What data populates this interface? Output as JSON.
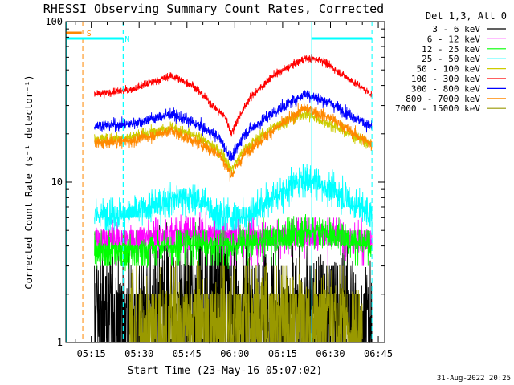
{
  "chart_data": {
    "type": "line",
    "title": "RHESSI Observing Summary Count Rates, Corrected",
    "xlabel": "Start Time (23-May-16 05:07:02)",
    "ylabel": "Corrected Count Rate (s⁻¹ detector⁻¹)",
    "y_scale": "log",
    "ylim": [
      1,
      100
    ],
    "xlim": [
      "05:07:02",
      "06:47:00"
    ],
    "grid": false,
    "legend_placement": "right",
    "legend_title": "Det 1,3, Att 0",
    "y_ticks": [
      {
        "value": 1,
        "label": "1"
      },
      {
        "value": 10,
        "label": "10"
      },
      {
        "value": 100,
        "label": "100"
      }
    ],
    "x_ticks": [
      {
        "t": "05:15",
        "label": "05:15"
      },
      {
        "t": "05:30",
        "label": "05:30"
      },
      {
        "t": "05:45",
        "label": "05:45"
      },
      {
        "t": "06:00",
        "label": "06:00"
      },
      {
        "t": "06:15",
        "label": "06:15"
      },
      {
        "t": "06:30",
        "label": "06:30"
      },
      {
        "t": "06:45",
        "label": "06:45"
      }
    ],
    "data_start": "05:16:00",
    "data_end": "06:43:30",
    "series": [
      {
        "name": "3 - 6 keV",
        "color": "#000000",
        "min": 1,
        "max": 8,
        "points": [
          [
            "05:16",
            2.0
          ],
          [
            "05:20",
            1.8
          ],
          [
            "05:30",
            1.7
          ],
          [
            "05:45",
            2.4
          ],
          [
            "05:57",
            2.6
          ],
          [
            "06:05",
            2.0
          ],
          [
            "06:20",
            1.8
          ],
          [
            "06:30",
            1.9
          ],
          [
            "06:43",
            1.5
          ]
        ]
      },
      {
        "name": "6 - 12 keV",
        "color": "#ff00ff",
        "min": 2.5,
        "max": 7,
        "points": [
          [
            "05:16",
            4.3
          ],
          [
            "05:30",
            4.4
          ],
          [
            "05:45",
            4.8
          ],
          [
            "05:58",
            4.5
          ],
          [
            "06:10",
            4.4
          ],
          [
            "06:25",
            4.8
          ],
          [
            "06:43",
            4.3
          ]
        ]
      },
      {
        "name": "12 - 25 keV",
        "color": "#00ff00",
        "min": 2,
        "max": 7,
        "points": [
          [
            "05:16",
            3.6
          ],
          [
            "05:30",
            3.7
          ],
          [
            "05:45",
            4.2
          ],
          [
            "05:58",
            4.0
          ],
          [
            "06:10",
            4.3
          ],
          [
            "06:25",
            5.0
          ],
          [
            "06:43",
            4.0
          ]
        ]
      },
      {
        "name": "25 - 50 keV",
        "color": "#00ffff",
        "min": 5,
        "max": 13,
        "points": [
          [
            "05:16",
            6.2
          ],
          [
            "05:30",
            6.5
          ],
          [
            "05:40",
            7.8
          ],
          [
            "05:48",
            8.0
          ],
          [
            "05:56",
            6.0
          ],
          [
            "06:03",
            6.0
          ],
          [
            "06:12",
            8.0
          ],
          [
            "06:22",
            10.5
          ],
          [
            "06:30",
            9.0
          ],
          [
            "06:43",
            6.2
          ]
        ]
      },
      {
        "name": "50 - 100 keV",
        "color": "#cccc00",
        "min": 9,
        "max": 40,
        "points": [
          [
            "05:16",
            18.5
          ],
          [
            "05:27",
            19.0
          ],
          [
            "05:40",
            22.0
          ],
          [
            "05:50",
            18.5
          ],
          [
            "05:56",
            15.0
          ],
          [
            "05:59",
            12.0
          ],
          [
            "06:03",
            16.0
          ],
          [
            "06:12",
            22.0
          ],
          [
            "06:22",
            27.0
          ],
          [
            "06:32",
            22.0
          ],
          [
            "06:43",
            17.0
          ]
        ]
      },
      {
        "name": "100 - 300 keV",
        "color": "#ff0000",
        "min": 14,
        "max": 70,
        "points": [
          [
            "05:16",
            35.0
          ],
          [
            "05:27",
            37.5
          ],
          [
            "05:40",
            46.0
          ],
          [
            "05:47",
            40.0
          ],
          [
            "05:53",
            30.0
          ],
          [
            "05:57",
            25.5
          ],
          [
            "05:59",
            20.0
          ],
          [
            "06:01",
            25.0
          ],
          [
            "06:05",
            34.0
          ],
          [
            "06:12",
            46.0
          ],
          [
            "06:22",
            59.0
          ],
          [
            "06:27",
            58.0
          ],
          [
            "06:35",
            45.0
          ],
          [
            "06:43",
            35.0
          ]
        ]
      },
      {
        "name": "300 - 800 keV",
        "color": "#0000ff",
        "min": 10,
        "max": 45,
        "points": [
          [
            "05:16",
            22.5
          ],
          [
            "05:27",
            23.0
          ],
          [
            "05:40",
            26.5
          ],
          [
            "05:48",
            23.0
          ],
          [
            "05:55",
            19.0
          ],
          [
            "05:59",
            14.0
          ],
          [
            "06:03",
            20.0
          ],
          [
            "06:12",
            27.0
          ],
          [
            "06:22",
            35.5
          ],
          [
            "06:30",
            31.0
          ],
          [
            "06:43",
            22.0
          ]
        ]
      },
      {
        "name": "800 - 7000 keV",
        "color": "#ff8800",
        "min": 9,
        "max": 38,
        "points": [
          [
            "05:16",
            17.5
          ],
          [
            "05:27",
            18.0
          ],
          [
            "05:40",
            21.0
          ],
          [
            "05:50",
            17.0
          ],
          [
            "05:55",
            15.0
          ],
          [
            "05:59",
            11.0
          ],
          [
            "06:03",
            15.0
          ],
          [
            "06:12",
            21.0
          ],
          [
            "06:22",
            29.0
          ],
          [
            "06:30",
            25.0
          ],
          [
            "06:43",
            17.0
          ]
        ]
      },
      {
        "name": "7000 - 15000 keV",
        "color": "#999900",
        "min": 1,
        "max": 4,
        "points": [
          [
            "05:27",
            1.4
          ],
          [
            "05:40",
            1.5
          ],
          [
            "06:00",
            1.6
          ],
          [
            "06:15",
            1.8
          ],
          [
            "06:30",
            1.6
          ],
          [
            "06:40",
            1.3
          ]
        ]
      }
    ],
    "flag_markers": [
      {
        "label": "S",
        "color": "#ff8800",
        "bar_start": "05:07:02",
        "bar_end": "05:12:00",
        "line_t": "05:12:20"
      },
      {
        "label": "N",
        "color": "#00ffff",
        "bar_start": "05:07:02",
        "bar_end": "05:24:00",
        "line_t": "05:25:00"
      }
    ],
    "night_intervals": [
      {
        "start": "05:07:02",
        "end": "05:25:00"
      },
      {
        "start": "06:24:00",
        "end": "06:43:00"
      }
    ],
    "timestamp": "31-Aug-2022 20:25"
  }
}
